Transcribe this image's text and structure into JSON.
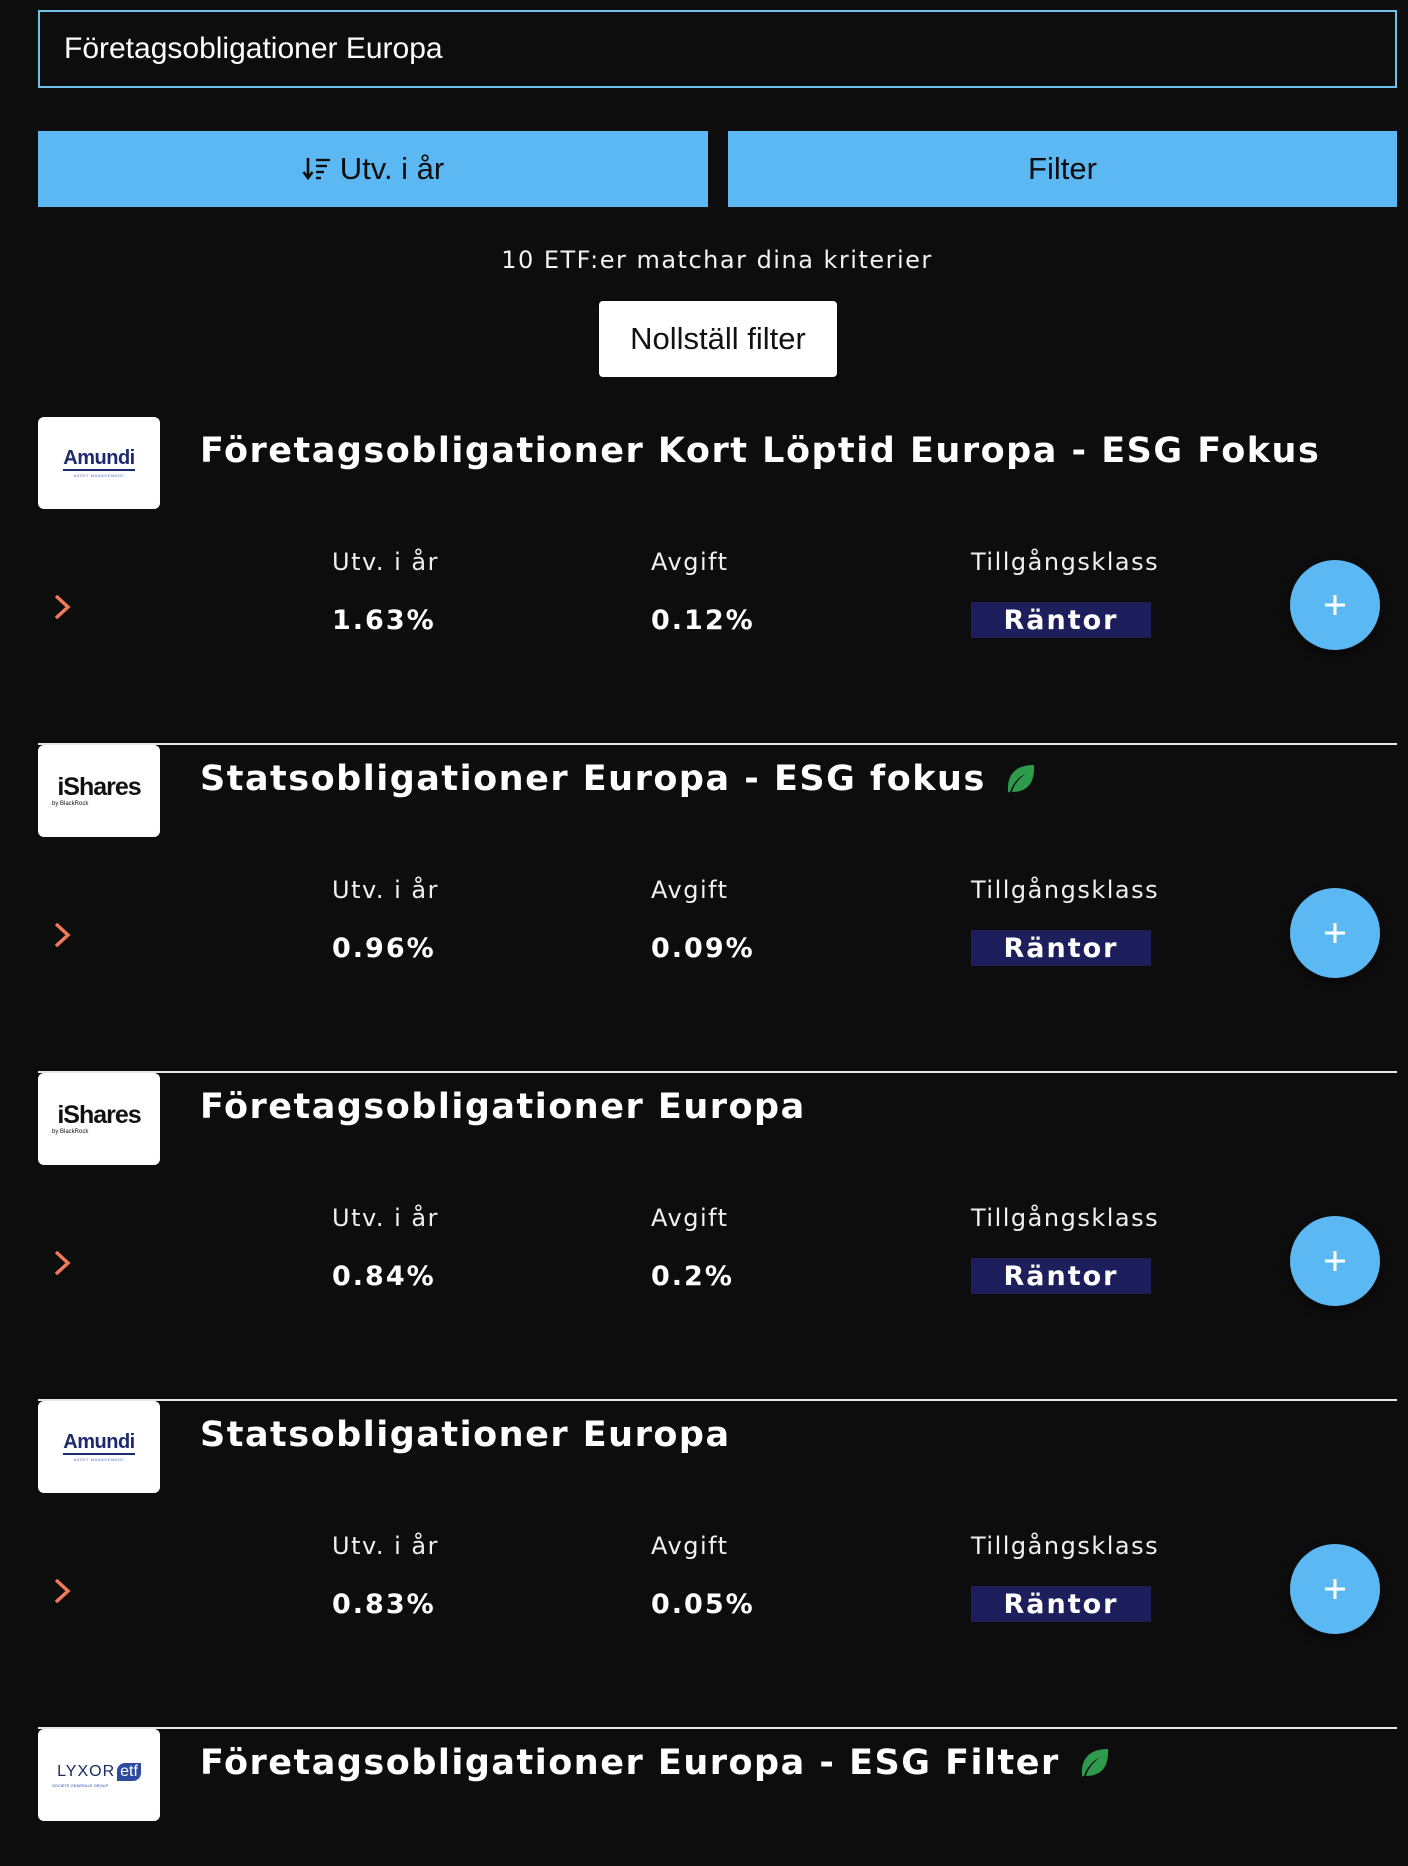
{
  "search": {
    "value": "Företagsobligationer Europa",
    "placeholder": ""
  },
  "toolbar": {
    "sort_label": "Utv. i år",
    "sort_icon": "sort-descending-icon",
    "filter_label": "Filter"
  },
  "results": {
    "match_text": "10 ETF:er matchar dina kriterier",
    "reset_label": "Nollställ filter"
  },
  "labels": {
    "return": "Utv. i år",
    "fee": "Avgift",
    "asset_class": "Tillgångsklass"
  },
  "colors": {
    "accent": "#5cb8f2",
    "chevron": "#f07a5a",
    "badge": "#1d1f5c",
    "leaf": "#2e9a4c"
  },
  "funds": [
    {
      "logo": "amundi",
      "logo_text": "Amundi",
      "logo_sub": "ASSET MANAGEMENT",
      "name": "Företagsobligationer Kort Löptid Europa - ESG Fokus",
      "esg_leaf": false,
      "return": "1.63%",
      "fee": "0.12%",
      "asset_class": "Räntor"
    },
    {
      "logo": "ishares",
      "logo_text": "iShares",
      "logo_sub": "by BlackRock",
      "name": "Statsobligationer Europa - ESG fokus",
      "esg_leaf": true,
      "return": "0.96%",
      "fee": "0.09%",
      "asset_class": "Räntor"
    },
    {
      "logo": "ishares",
      "logo_text": "iShares",
      "logo_sub": "by BlackRock",
      "name": "Företagsobligationer Europa",
      "esg_leaf": false,
      "return": "0.84%",
      "fee": "0.2%",
      "asset_class": "Räntor"
    },
    {
      "logo": "amundi",
      "logo_text": "Amundi",
      "logo_sub": "ASSET MANAGEMENT",
      "name": "Statsobligationer Europa",
      "esg_leaf": false,
      "return": "0.83%",
      "fee": "0.05%",
      "asset_class": "Räntor"
    },
    {
      "logo": "lyxor",
      "logo_text": "LYXOR",
      "logo_etf": "etf",
      "logo_sub": "SOCIETE GENERALE GROUP",
      "name": "Företagsobligationer Europa - ESG Filter",
      "esg_leaf": true
    }
  ]
}
